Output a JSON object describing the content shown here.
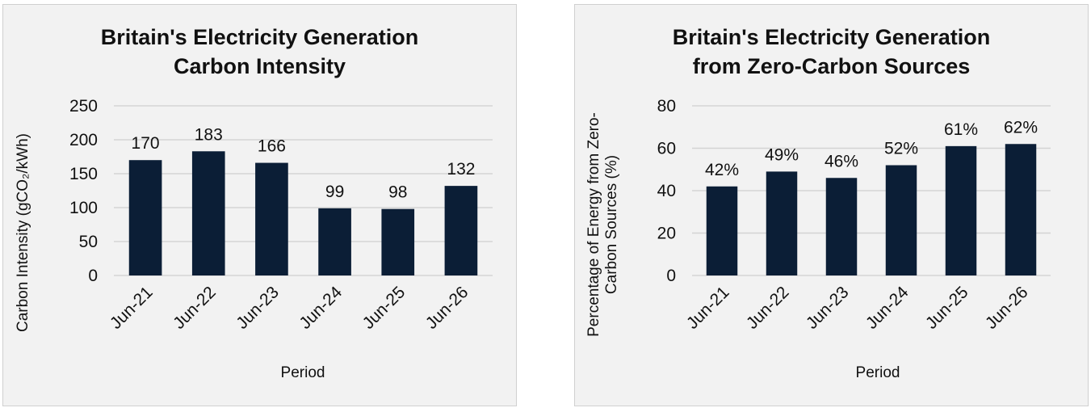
{
  "chart_data": [
    {
      "type": "bar",
      "title": "Britain's Electricity Generation Carbon Intensity",
      "title_lines": [
        "Britain's Electricity Generation",
        "Carbon Intensity"
      ],
      "categories": [
        "Jun-21",
        "Jun-22",
        "Jun-23",
        "Jun-24",
        "Jun-25",
        "Jun-26"
      ],
      "values": [
        170,
        183,
        166,
        99,
        98,
        132
      ],
      "data_labels": [
        "170",
        "183",
        "166",
        "99",
        "98",
        "132"
      ],
      "xlabel": "Period",
      "ylabel": "Carbon Intensity (gCO₂/kWh)",
      "ylim": [
        0,
        250
      ],
      "yticks": [
        0,
        50,
        100,
        150,
        200,
        250
      ],
      "grid": true,
      "bar_color": "#0b1e36"
    },
    {
      "type": "bar",
      "title": "Britain's Electricity Generation from Zero-Carbon Sources",
      "title_lines": [
        "Britain's Electricity Generation",
        "from Zero-Carbon Sources"
      ],
      "categories": [
        "Jun-21",
        "Jun-22",
        "Jun-23",
        "Jun-24",
        "Jun-25",
        "Jun-26"
      ],
      "values": [
        42,
        49,
        46,
        52,
        61,
        62
      ],
      "data_labels": [
        "42%",
        "49%",
        "46%",
        "52%",
        "61%",
        "62%"
      ],
      "xlabel": "Period",
      "ylabel": "Percentage of Energy from Zero-Carbon Sources (%)",
      "ylabel_lines": [
        "Percentage of Energy from Zero-",
        "Carbon Sources (%)"
      ],
      "ylim": [
        0,
        80
      ],
      "yticks": [
        0,
        20,
        40,
        60,
        80
      ],
      "grid": true,
      "bar_color": "#0b1e36"
    }
  ]
}
